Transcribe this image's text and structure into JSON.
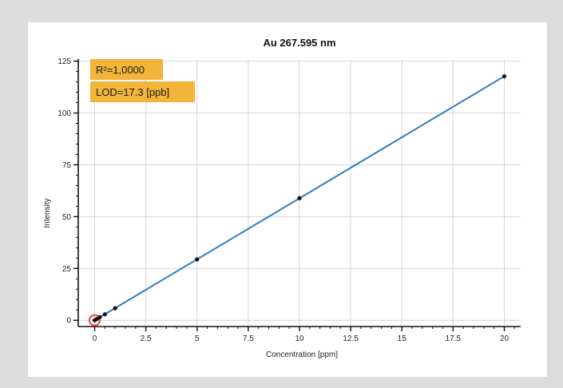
{
  "chart_data": {
    "type": "scatter",
    "title": "Au 267.595 nm",
    "xlabel": "Concentration [ppm]",
    "ylabel": "Intensity",
    "xlim": [
      -0.8,
      20.8
    ],
    "ylim": [
      -3,
      126
    ],
    "xticks": [
      0,
      2.5,
      5,
      7.5,
      10,
      12.5,
      15,
      17.5,
      20
    ],
    "xtick_labels": [
      "0",
      "2.5",
      "5",
      "7.5",
      "10",
      "12.5",
      "15",
      "17.5",
      "20"
    ],
    "yticks": [
      0,
      25,
      50,
      75,
      100,
      125
    ],
    "ytick_labels": [
      "0",
      "25",
      "50",
      "75",
      "100",
      "125"
    ],
    "grid": true,
    "series": [
      {
        "points": [
          {
            "x": 0,
            "y": 0
          },
          {
            "x": 0.1,
            "y": 0.6
          },
          {
            "x": 0.25,
            "y": 1.5
          },
          {
            "x": 0.5,
            "y": 2.9
          },
          {
            "x": 1,
            "y": 5.8
          },
          {
            "x": 5,
            "y": 29.4
          },
          {
            "x": 10,
            "y": 58.9
          },
          {
            "x": 20,
            "y": 117.7
          }
        ],
        "fit": {
          "x": [
            0,
            20
          ],
          "y": [
            0,
            117.7
          ]
        },
        "highlighted_point": {
          "x": 0,
          "y": 0
        }
      }
    ],
    "annotations": [
      "R²=1,0000",
      "LOD=17.3 [ppb]"
    ],
    "colors": {
      "line": "#2f7bbf",
      "points": "#111111",
      "highlight": "#e8463a",
      "annotation_bg": "#f2b53a",
      "grid": "#d6d6d6"
    }
  }
}
